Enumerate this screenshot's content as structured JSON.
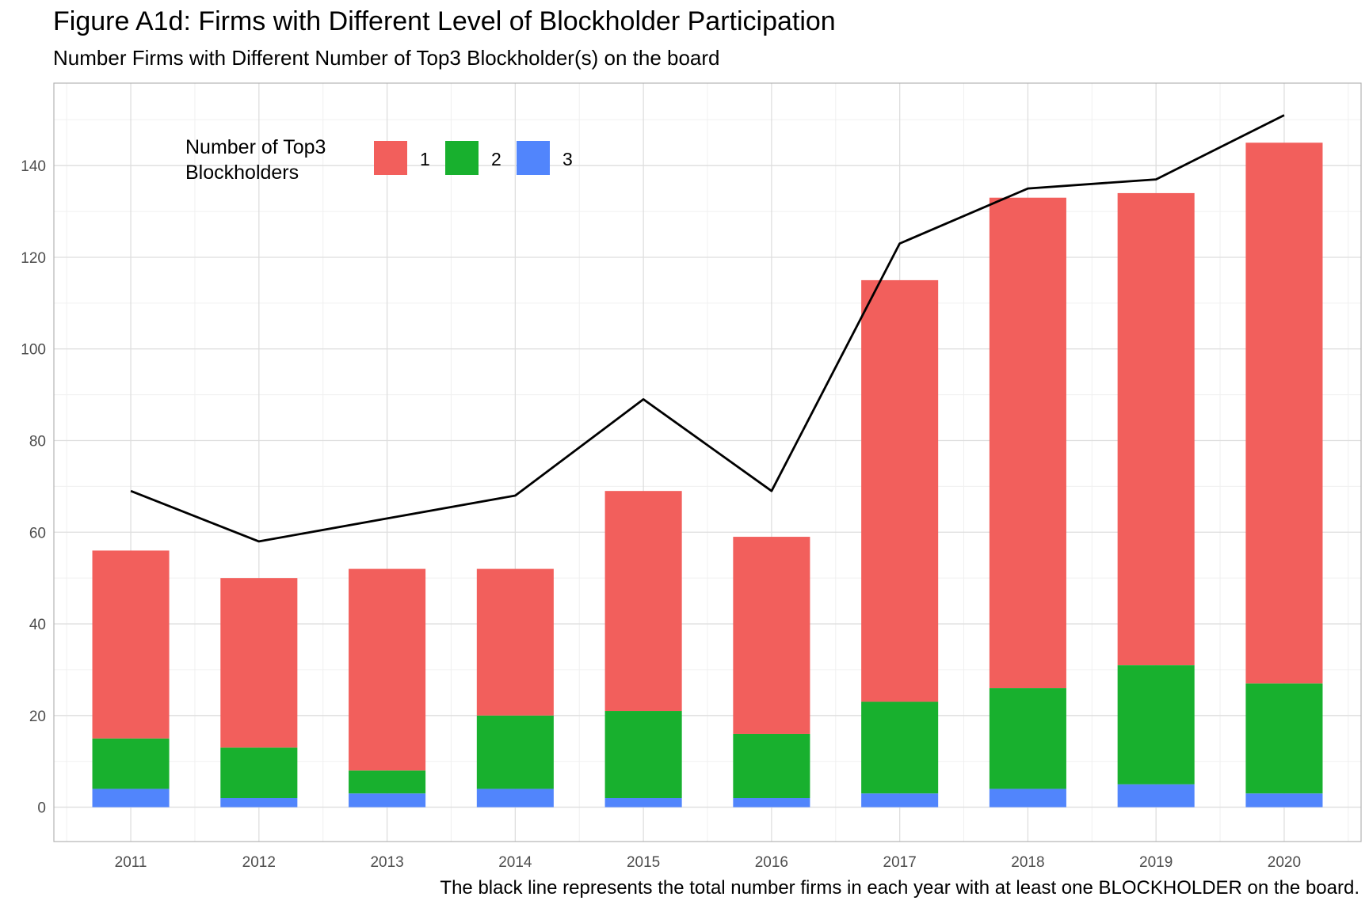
{
  "chart_data": {
    "type": "bar",
    "stacked": true,
    "title": "Figure A1d: Firms with Different Level of Blockholder Participation",
    "subtitle": "Number Firms with Different Number of Top3 Blockholder(s) on the board",
    "caption": "The black line represents the total number firms in each year with at least one BLOCKHOLDER on the board.",
    "xlabel": "",
    "ylabel": "",
    "categories": [
      "2011",
      "2012",
      "2013",
      "2014",
      "2015",
      "2016",
      "2017",
      "2018",
      "2019",
      "2020"
    ],
    "ylim": [
      -7.5,
      158
    ],
    "yticks": [
      0,
      20,
      40,
      60,
      80,
      100,
      120,
      140
    ],
    "grid": true,
    "legend": {
      "title_lines": [
        "Number of Top3",
        "Blockholders"
      ],
      "placement": "top-left inside"
    },
    "series": [
      {
        "name": "1",
        "color": "#F25F5C",
        "values": [
          41,
          37,
          44,
          32,
          48,
          43,
          92,
          107,
          103,
          118
        ]
      },
      {
        "name": "2",
        "color": "#18B02E",
        "values": [
          11,
          11,
          5,
          16,
          19,
          14,
          20,
          22,
          26,
          24
        ]
      },
      {
        "name": "3",
        "color": "#5185FC",
        "values": [
          4,
          2,
          3,
          4,
          2,
          2,
          3,
          4,
          5,
          3
        ]
      }
    ],
    "stack_order_bottom_to_top": [
      "3",
      "2",
      "1"
    ],
    "line": {
      "color": "#000000",
      "values": [
        69,
        58,
        63,
        68,
        89,
        69,
        123,
        135,
        137,
        151
      ]
    }
  }
}
